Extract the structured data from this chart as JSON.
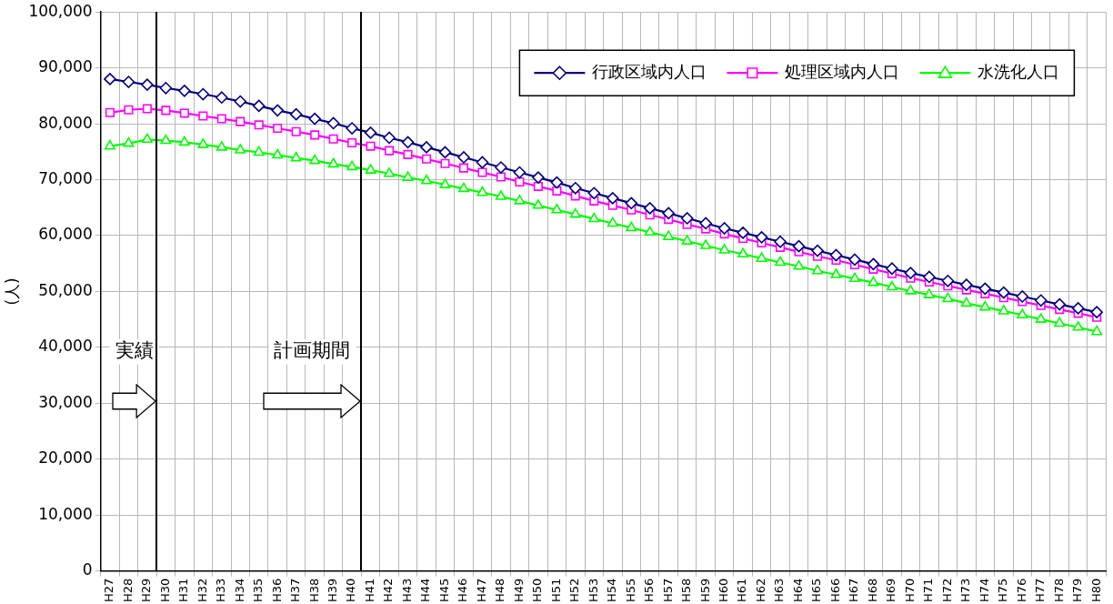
{
  "chart_data": {
    "type": "line",
    "categories": [
      "H27",
      "H28",
      "H29",
      "H30",
      "H31",
      "H32",
      "H33",
      "H34",
      "H35",
      "H36",
      "H37",
      "H38",
      "H39",
      "H40",
      "H41",
      "H42",
      "H43",
      "H44",
      "H45",
      "H46",
      "H47",
      "H48",
      "H49",
      "H50",
      "H51",
      "H52",
      "H53",
      "H54",
      "H55",
      "H56",
      "H57",
      "H58",
      "H59",
      "H60",
      "H61",
      "H62",
      "H63",
      "H64",
      "H65",
      "H66",
      "H67",
      "H68",
      "H69",
      "H70",
      "H71",
      "H72",
      "H73",
      "H74",
      "H75",
      "H76",
      "H77",
      "H78",
      "H79",
      "H80"
    ],
    "series": [
      {
        "name": "行政区域内人口",
        "color": "#000080",
        "marker": "diamond",
        "values": [
          88000,
          87500,
          87000,
          86400,
          85900,
          85300,
          84700,
          84000,
          83200,
          82400,
          81700,
          80900,
          80100,
          79200,
          78400,
          77500,
          76700,
          75800,
          74900,
          74000,
          73100,
          72200,
          71300,
          70400,
          69500,
          68500,
          67600,
          66700,
          65800,
          64900,
          64000,
          63100,
          62200,
          61300,
          60500,
          59700,
          58900,
          58100,
          57300,
          56500,
          55700,
          54900,
          54100,
          53300,
          52600,
          51900,
          51200,
          50500,
          49800,
          49100,
          48400,
          47700,
          47000,
          46300
        ]
      },
      {
        "name": "処理区域内人口",
        "color": "#ff00ff",
        "marker": "square",
        "values": [
          82000,
          82500,
          82700,
          82400,
          81900,
          81400,
          80900,
          80400,
          79800,
          79200,
          78600,
          78000,
          77300,
          76600,
          76000,
          75200,
          74500,
          73700,
          72900,
          72100,
          71300,
          70500,
          69600,
          68800,
          68000,
          67100,
          66200,
          65400,
          64600,
          63700,
          62900,
          62000,
          61200,
          60300,
          59500,
          58700,
          57900,
          57100,
          56300,
          55600,
          54800,
          54000,
          53200,
          52400,
          51700,
          51000,
          50300,
          49600,
          48900,
          48200,
          47500,
          46800,
          46100,
          45400
        ]
      },
      {
        "name": "水洗化人口",
        "color": "#00ff00",
        "marker": "triangle",
        "values": [
          76000,
          76500,
          77200,
          77000,
          76700,
          76300,
          75800,
          75300,
          74900,
          74400,
          73900,
          73400,
          72800,
          72300,
          71700,
          71100,
          70400,
          69800,
          69100,
          68400,
          67700,
          67000,
          66200,
          65400,
          64600,
          63800,
          63000,
          62200,
          61400,
          60600,
          59800,
          59000,
          58200,
          57400,
          56700,
          55900,
          55200,
          54500,
          53700,
          53000,
          52300,
          51600,
          50800,
          50100,
          49400,
          48700,
          47900,
          47200,
          46500,
          45800,
          45000,
          44300,
          43600,
          42800
        ]
      }
    ],
    "ylabel": "(人)",
    "ylim": [
      0,
      100000
    ],
    "yticks": [
      0,
      {
        "value": 10000,
        "label": "10,000"
      },
      {
        "value": 20000,
        "label": "20,000"
      },
      {
        "value": 30000,
        "label": "30,000"
      },
      {
        "value": 40000,
        "label": "40,000"
      },
      {
        "value": 50000,
        "label": "50,000"
      },
      {
        "value": 60000,
        "label": "60,000"
      },
      {
        "value": 70000,
        "label": "70,000"
      },
      {
        "value": 80000,
        "label": "80,000"
      },
      {
        "value": 90000,
        "label": "90,000"
      },
      {
        "value": 100000,
        "label": "100,000"
      }
    ],
    "annotations": [
      "実績",
      "計画期間"
    ],
    "grid": true,
    "legend": "top right",
    "line_style": "solid"
  }
}
